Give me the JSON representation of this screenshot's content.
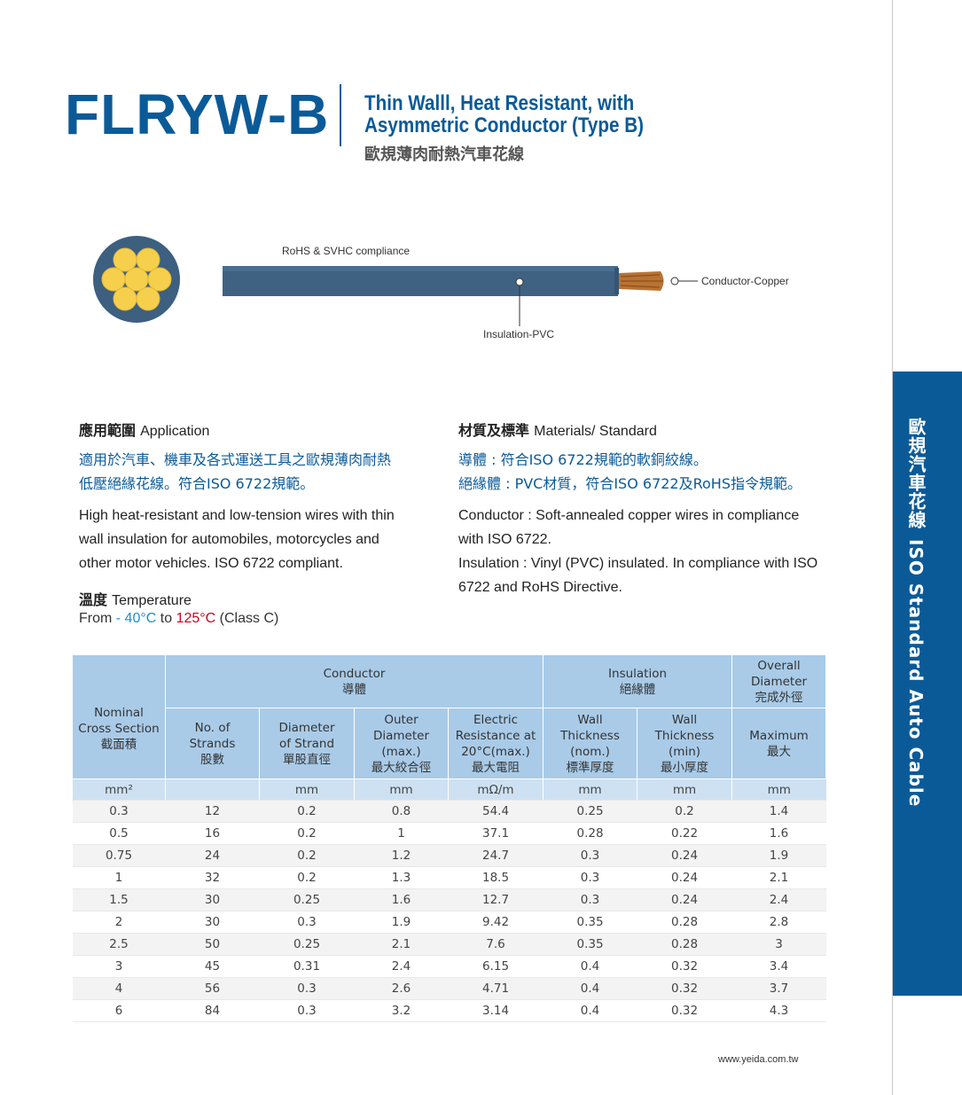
{
  "header": {
    "product_code": "FLRYW-B",
    "title_en_line1": "Thin Walll, Heat Resistant, with",
    "title_en_line2": "Asymmetric Conductor (Type B)",
    "title_zh": "歐規薄肉耐熱汽車花線"
  },
  "side_tab": {
    "text_zh": "歐規汽車花線",
    "text_en": "ISO Standard Auto Cable"
  },
  "diagram": {
    "label_rohs": "RoHS & SVHC compliance",
    "label_conductor": "Conductor-Copper",
    "label_insulation": "Insulation-PVC",
    "colors": {
      "jacket": "#3d5f80",
      "strand": "#f6d04d",
      "copper": "#b87333"
    }
  },
  "application": {
    "heading_zh": "應用範圍",
    "heading_en": "Application",
    "zh_line1": "適用於汽車、機車及各式運送工具之歐規薄肉耐熱",
    "zh_line2": "低壓絕緣花線。符合ISO 6722規範。",
    "en_line1": "High heat-resistant and low-tension wires with thin",
    "en_line2": "wall insulation for automobiles, motorcycles and",
    "en_line3": "other motor vehicles. ISO 6722 compliant."
  },
  "temperature": {
    "heading_zh": "溫度",
    "heading_en": "Temperature",
    "from": "From",
    "low": "- 40°C",
    "to": "to",
    "high": "125°C",
    "class": "(Class C)"
  },
  "materials": {
    "heading_zh": "材質及標準",
    "heading_en": "Materials/ Standard",
    "zh_line1": "導體 : 符合ISO 6722規範的軟銅絞線。",
    "zh_line2": "絕緣體 : PVC材質，符合ISO 6722及RoHS指令規範。",
    "en_line1": "Conductor : Soft-annealed copper wires in compliance",
    "en_line2": "with ISO 6722.",
    "en_line3": "Insulation : Vinyl (PVC) insulated. In compliance with ISO",
    "en_line4": "6722 and RoHS Directive."
  },
  "table": {
    "h_nominal": [
      "Nominal",
      "Cross Section",
      "截面積"
    ],
    "h_conductor": [
      "Conductor",
      "導體"
    ],
    "h_insulation": [
      "Insulation",
      "絕緣體"
    ],
    "h_overall": [
      "Overall",
      "Diameter",
      "完成外徑"
    ],
    "h_strands": [
      "No. of",
      "Strands",
      "股數"
    ],
    "h_diameter": [
      "Diameter",
      "of  Strand",
      "單股直徑"
    ],
    "h_outer": [
      "Outer",
      "Diameter",
      "(max.)",
      "最大絞合徑"
    ],
    "h_resistance": [
      "Electric",
      "Resistance at",
      "20°C(max.)",
      "最大電阻"
    ],
    "h_wall_nom": [
      "Wall",
      "Thickness",
      "(nom.)",
      "標準厚度"
    ],
    "h_wall_min": [
      "Wall",
      "Thickness",
      "(min)",
      "最小厚度"
    ],
    "h_maximum": [
      "Maximum",
      "最大"
    ],
    "units": [
      "mm²",
      "",
      "mm",
      "mm",
      "mΩ/m",
      "mm",
      "mm",
      "mm"
    ],
    "rows": [
      [
        "0.3",
        "12",
        "0.2",
        "0.8",
        "54.4",
        "0.25",
        "0.2",
        "1.4"
      ],
      [
        "0.5",
        "16",
        "0.2",
        "1",
        "37.1",
        "0.28",
        "0.22",
        "1.6"
      ],
      [
        "0.75",
        "24",
        "0.2",
        "1.2",
        "24.7",
        "0.3",
        "0.24",
        "1.9"
      ],
      [
        "1",
        "32",
        "0.2",
        "1.3",
        "18.5",
        "0.3",
        "0.24",
        "2.1"
      ],
      [
        "1.5",
        "30",
        "0.25",
        "1.6",
        "12.7",
        "0.3",
        "0.24",
        "2.4"
      ],
      [
        "2",
        "30",
        "0.3",
        "1.9",
        "9.42",
        "0.35",
        "0.28",
        "2.8"
      ],
      [
        "2.5",
        "50",
        "0.25",
        "2.1",
        "7.6",
        "0.35",
        "0.28",
        "3"
      ],
      [
        "3",
        "45",
        "0.31",
        "2.4",
        "6.15",
        "0.4",
        "0.32",
        "3.4"
      ],
      [
        "4",
        "56",
        "0.3",
        "2.6",
        "4.71",
        "0.4",
        "0.32",
        "3.7"
      ],
      [
        "6",
        "84",
        "0.3",
        "3.2",
        "3.14",
        "0.4",
        "0.32",
        "4.3"
      ]
    ]
  },
  "footer": {
    "url": "www.yeida.com.tw"
  }
}
